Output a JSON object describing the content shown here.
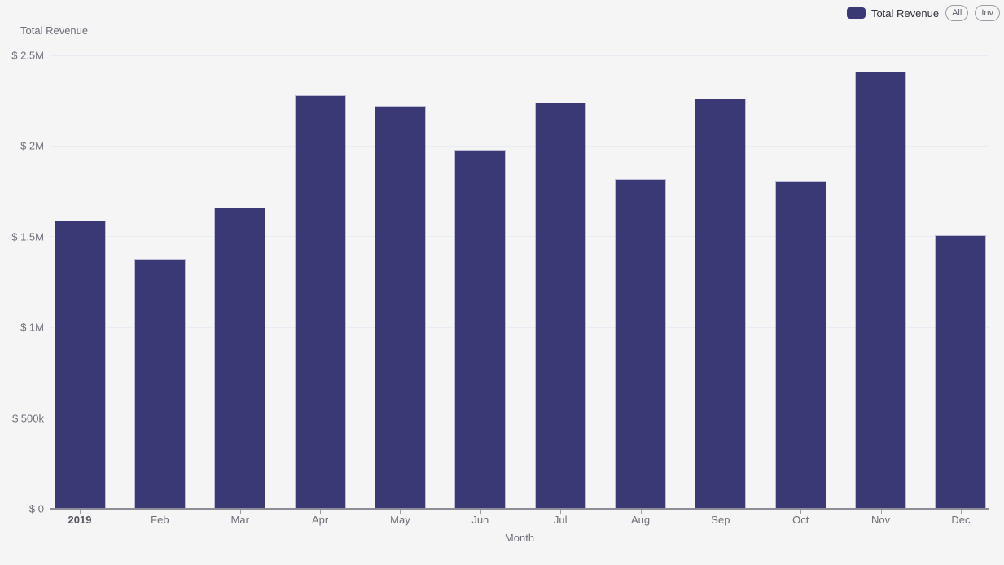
{
  "page": {
    "background": "#f5f5f6"
  },
  "header": {
    "axis_title_y": "Total Revenue",
    "legend": {
      "series_label": "Total Revenue",
      "swatch_color": "#3a3875",
      "buttons": [
        {
          "label": "All"
        },
        {
          "label": "Inv"
        }
      ]
    }
  },
  "chart_data": {
    "type": "bar",
    "title": "Total Revenue",
    "series_name": "Total Revenue",
    "categories": [
      "2019",
      "Feb",
      "Mar",
      "Apr",
      "May",
      "Jun",
      "Jul",
      "Aug",
      "Sep",
      "Oct",
      "Nov",
      "Dec"
    ],
    "values": [
      1590000,
      1380000,
      1660000,
      2280000,
      2220000,
      1980000,
      2240000,
      1820000,
      2260000,
      1810000,
      2410000,
      1510000
    ],
    "xlabel": "Month",
    "ylabel": "Total Revenue",
    "ylim": [
      0,
      2500000
    ],
    "ytick_values": [
      0,
      500000,
      1000000,
      1500000,
      2000000,
      2500000
    ],
    "ytick_labels": [
      "$ 0",
      "$ 500k",
      "$ 1M",
      "$ 1.5M",
      "$ 2M",
      "$ 2.5M"
    ],
    "bar_color": "#3a3875",
    "grid": true,
    "legend_position": "top-right"
  }
}
